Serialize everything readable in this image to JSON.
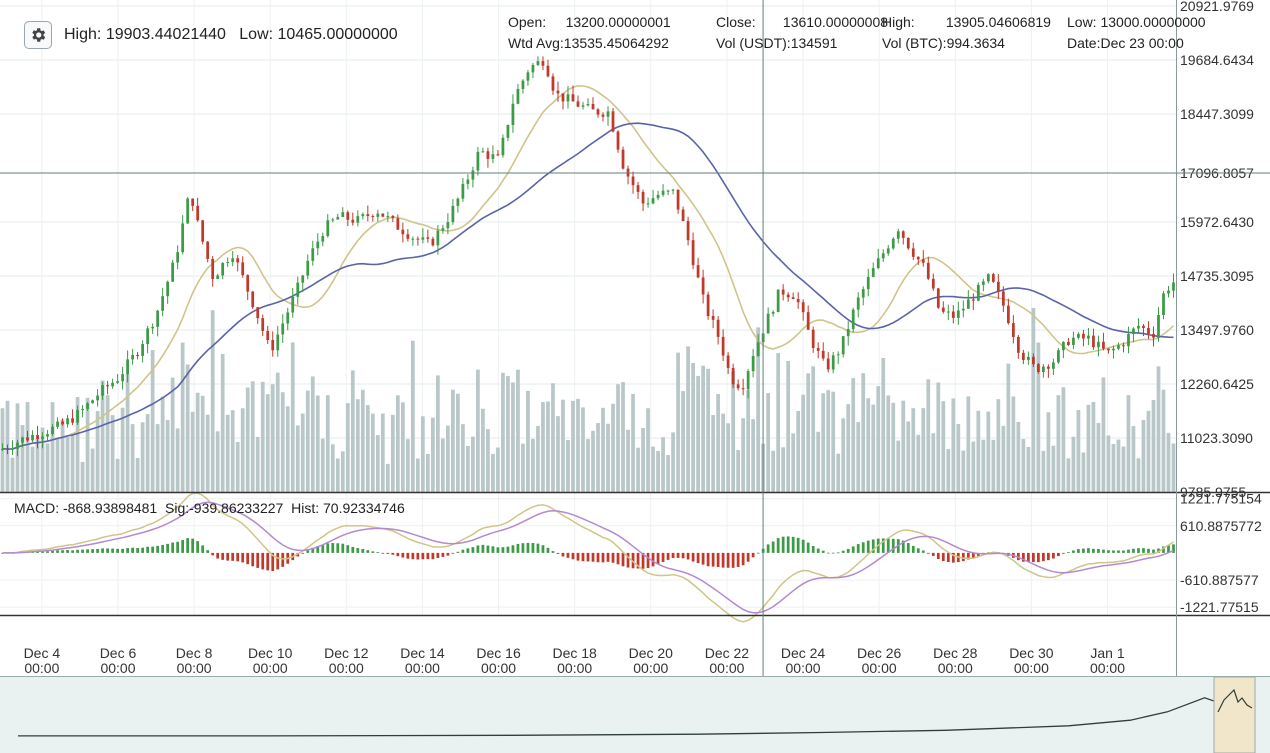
{
  "header": {
    "settings_icon": "gear-icon",
    "high_label": "High:",
    "high_value": "19903.44021440",
    "low_label": "Low:",
    "low_value": "10465.00000000"
  },
  "ohlc": {
    "open_label": "Open:",
    "open_value": "13200.00000001",
    "close_label": "Close:",
    "close_value": "13610.00000008",
    "high_label": "High:",
    "high_value": "13905.04606819",
    "low_label": "Low:",
    "low_value": "13000.00000000",
    "wavg_label": "Wtd Avg:",
    "wavg_value": "13535.45064292",
    "volusdt_label": "Vol (USDT):",
    "volusdt_value": "134591",
    "volbtc_label": "Vol (BTC):",
    "volbtc_value": "994.3634",
    "date_label": "Date:",
    "date_value": "Dec 23 00:00"
  },
  "macd_legend": {
    "macd_label": "MACD:",
    "macd_value": "-868.93898481",
    "sig_label": "Sig:",
    "sig_value": "-939.86233227",
    "hist_label": "Hist:",
    "hist_value": "70.92334746"
  },
  "colors": {
    "up": "#3d9a46",
    "down": "#c0392b",
    "volume": "#b9c7c9",
    "ma_short": "#cfc58a",
    "ma_long": "#5a63a8",
    "macd_line": "#cfc58a",
    "signal_line": "#b38ad0",
    "crosshair": "#5f7f7c",
    "navigator_bg": "#e9f2f1"
  },
  "chart_data": {
    "type": "candlestick",
    "price_axis": {
      "ticks": [
        20921.9769,
        19684.6434,
        18447.3099,
        17096.8057,
        15972.643,
        14735.3095,
        13497.976,
        12260.6425,
        11023.309,
        9785.9755
      ],
      "tick_labels": [
        "20921.9769",
        "19684.6434",
        "18447.3099",
        "17096.8057",
        "15972.6430",
        "14735.3095",
        "13497.9760",
        "12260.6425",
        "11023.3090",
        "9785.9755"
      ],
      "range": [
        9785.9755,
        20921.9769
      ],
      "highlighted_level": 17096.8057
    },
    "macd_axis": {
      "tick_labels": [
        "1221.775154",
        "610.8875772",
        "-610.887577",
        "-1221.77515"
      ],
      "ticks": [
        1221.775154,
        610.8875772,
        -610.887577,
        -1221.77515
      ],
      "range": [
        -1400,
        1350
      ]
    },
    "time_axis": {
      "labels": [
        "Dec 4",
        "Dec 6",
        "Dec 8",
        "Dec 10",
        "Dec 12",
        "Dec 14",
        "Dec 16",
        "Dec 18",
        "Dec 20",
        "Dec 22",
        "Dec 24",
        "Dec 26",
        "Dec 28",
        "Dec 30",
        "Jan 1"
      ],
      "sublabel": "00:00",
      "start_day": 2.9,
      "end_day": 33.8,
      "label_days": [
        4,
        6,
        8,
        10,
        12,
        14,
        16,
        18,
        20,
        22,
        24,
        26,
        28,
        30,
        32
      ]
    },
    "crosshair": {
      "day": 22.95,
      "price": 17096.8057
    },
    "price_keypoints": [
      [
        2.9,
        10750
      ],
      [
        3.5,
        11000
      ],
      [
        4.0,
        11150
      ],
      [
        4.5,
        11300
      ],
      [
        5.0,
        11600
      ],
      [
        5.5,
        12050
      ],
      [
        6.0,
        12400
      ],
      [
        6.5,
        13000
      ],
      [
        7.0,
        13850
      ],
      [
        7.5,
        15100
      ],
      [
        7.9,
        16700
      ],
      [
        8.1,
        15900
      ],
      [
        8.5,
        14700
      ],
      [
        9.0,
        15300
      ],
      [
        9.6,
        14000
      ],
      [
        10.0,
        13000
      ],
      [
        10.3,
        13600
      ],
      [
        10.7,
        14400
      ],
      [
        11.0,
        15100
      ],
      [
        11.4,
        15800
      ],
      [
        11.8,
        16100
      ],
      [
        12.3,
        16000
      ],
      [
        12.8,
        16250
      ],
      [
        13.3,
        15900
      ],
      [
        13.8,
        15600
      ],
      [
        14.2,
        15450
      ],
      [
        14.7,
        16100
      ],
      [
        15.0,
        16600
      ],
      [
        15.5,
        17600
      ],
      [
        16.0,
        17400
      ],
      [
        16.4,
        18800
      ],
      [
        16.8,
        19500
      ],
      [
        17.2,
        19700
      ],
      [
        17.5,
        18900
      ],
      [
        18.0,
        18700
      ],
      [
        18.5,
        18500
      ],
      [
        18.9,
        18500
      ],
      [
        19.3,
        17200
      ],
      [
        19.8,
        16400
      ],
      [
        20.2,
        16600
      ],
      [
        20.6,
        16650
      ],
      [
        21.0,
        15500
      ],
      [
        21.4,
        14100
      ],
      [
        21.8,
        13300
      ],
      [
        22.1,
        12400
      ],
      [
        22.4,
        12200
      ],
      [
        22.7,
        13000
      ],
      [
        23.0,
        13610
      ],
      [
        23.4,
        14400
      ],
      [
        23.8,
        14300
      ],
      [
        24.2,
        13300
      ],
      [
        24.6,
        12600
      ],
      [
        25.0,
        13100
      ],
      [
        25.4,
        14100
      ],
      [
        25.8,
        14800
      ],
      [
        26.2,
        15400
      ],
      [
        26.5,
        15850
      ],
      [
        26.8,
        15400
      ],
      [
        27.2,
        14900
      ],
      [
        27.6,
        13900
      ],
      [
        28.0,
        13800
      ],
      [
        28.5,
        14300
      ],
      [
        28.9,
        14700
      ],
      [
        29.3,
        14000
      ],
      [
        29.7,
        13000
      ],
      [
        30.1,
        12600
      ],
      [
        30.6,
        12800
      ],
      [
        31.0,
        13300
      ],
      [
        31.5,
        13300
      ],
      [
        32.0,
        12950
      ],
      [
        32.4,
        13200
      ],
      [
        32.8,
        13600
      ],
      [
        33.2,
        13400
      ],
      [
        33.5,
        14400
      ],
      [
        33.8,
        14650
      ]
    ],
    "navigator_points": [
      [
        0.0,
        0.02
      ],
      [
        0.2,
        0.02
      ],
      [
        0.4,
        0.03
      ],
      [
        0.55,
        0.05
      ],
      [
        0.65,
        0.08
      ],
      [
        0.75,
        0.12
      ],
      [
        0.85,
        0.2
      ],
      [
        0.9,
        0.3
      ],
      [
        0.93,
        0.45
      ],
      [
        0.96,
        0.7
      ],
      [
        0.98,
        0.55
      ],
      [
        1.0,
        0.5
      ]
    ]
  }
}
